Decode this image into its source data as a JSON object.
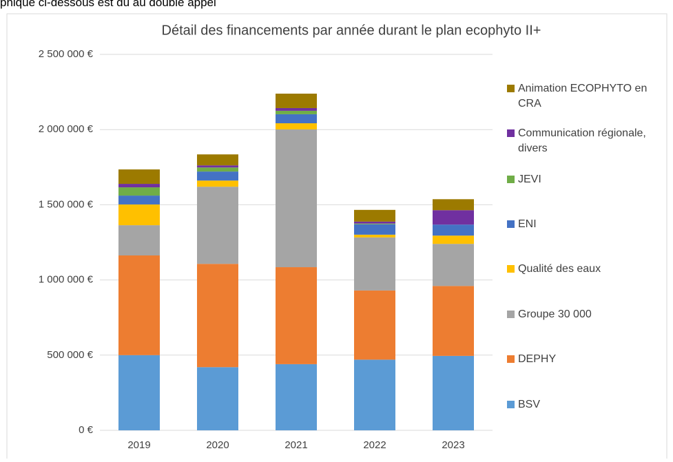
{
  "caption": "phique ci-dessous est dû au double appel",
  "chart_data": {
    "type": "stacked_bar",
    "title": "Détail des financements par année durant le plan ecophyto II+",
    "categories": [
      "2019",
      "2020",
      "2021",
      "2022",
      "2023"
    ],
    "series": [
      {
        "name": "BSV",
        "color": "#5b9bd5",
        "values": [
          500000,
          420000,
          440000,
          470000,
          495000
        ]
      },
      {
        "name": "DEPHY",
        "color": "#ed7d31",
        "values": [
          663000,
          687000,
          645000,
          460000,
          465000
        ]
      },
      {
        "name": "Groupe 30 000",
        "color": "#a5a5a5",
        "values": [
          201000,
          513000,
          916000,
          353000,
          280000
        ]
      },
      {
        "name": "Qualité des eaux",
        "color": "#ffc000",
        "values": [
          138000,
          41000,
          41000,
          18000,
          55000
        ]
      },
      {
        "name": "ENI",
        "color": "#4472c4",
        "values": [
          59000,
          60000,
          60000,
          69000,
          73000
        ]
      },
      {
        "name": "JEVI",
        "color": "#70ad47",
        "values": [
          55000,
          27000,
          23000,
          5000,
          0
        ]
      },
      {
        "name": "Communication régionale, divers",
        "color": "#7030a0",
        "values": [
          23000,
          14000,
          18000,
          13000,
          96000
        ]
      },
      {
        "name": "Animation ECOPHYTO en CRA",
        "color": "#9c7a00",
        "values": [
          96000,
          73000,
          96000,
          78000,
          73000
        ]
      }
    ],
    "ylim": [
      0,
      2500000
    ],
    "yticks": [
      {
        "value": 0,
        "label": "0 €"
      },
      {
        "value": 500000,
        "label": "500 000 €"
      },
      {
        "value": 1000000,
        "label": "1 000 000 €"
      },
      {
        "value": 1500000,
        "label": "1 500 000 €"
      },
      {
        "value": 2000000,
        "label": "2 000 000 €"
      },
      {
        "value": 2500000,
        "label": "2 500 000 €"
      }
    ],
    "grid": true,
    "legend": "right"
  }
}
